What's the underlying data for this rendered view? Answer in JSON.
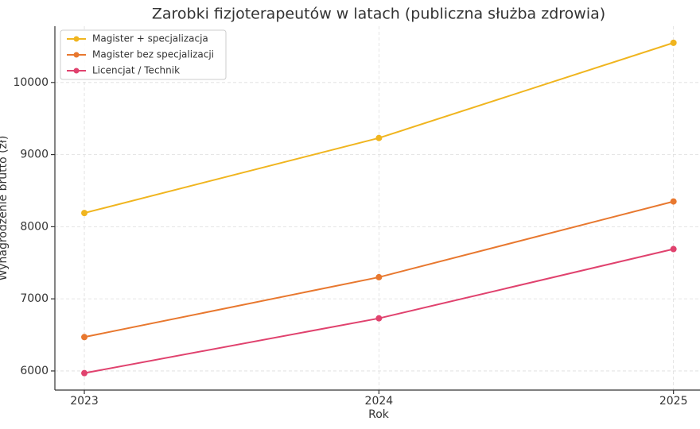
{
  "chart_data": {
    "type": "line",
    "title": "Zarobki fizjoterapeutów w latach (publiczna służba zdrowia)",
    "x_label": "Rok",
    "y_label": "Wynagrodzenie brutto (zł)",
    "x": [
      2023,
      2024,
      2025
    ],
    "series": [
      {
        "name": "Magister + specjalizacja",
        "color": "#f0b51f",
        "values": [
          8190,
          9230,
          10550
        ]
      },
      {
        "name": "Magister bez specjalizacji",
        "color": "#e8782f",
        "values": [
          6470,
          7300,
          8350
        ]
      },
      {
        "name": "Licencjat / Technik",
        "color": "#e0426e",
        "values": [
          5970,
          6730,
          7690
        ]
      }
    ],
    "xlim": [
      2022.9,
      2025.09
    ],
    "xticks": [
      2023,
      2024,
      2025
    ],
    "ylim": [
      5735,
      10780
    ],
    "yticks": [
      6000,
      7000,
      8000,
      9000,
      10000
    ],
    "grid": true,
    "legend": "upper-left"
  }
}
